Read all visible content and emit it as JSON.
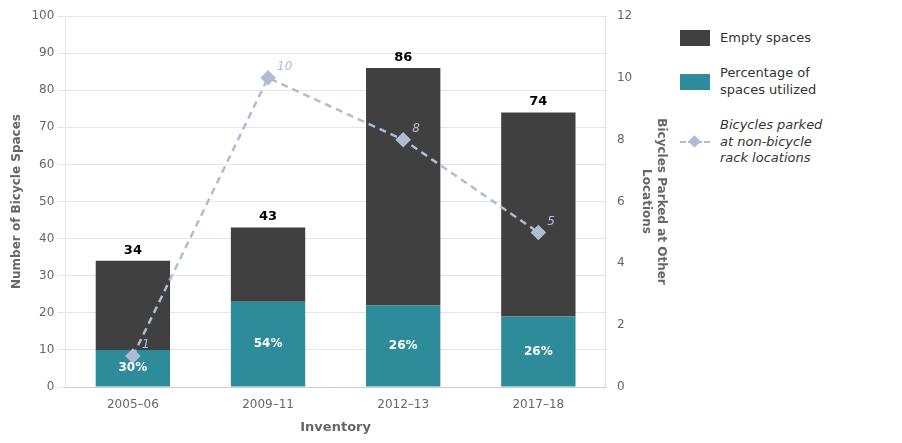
{
  "chart_data": {
    "type": "bar",
    "stacked": true,
    "categories": [
      "2005–06",
      "2009–11",
      "2012–13",
      "2017–18"
    ],
    "xlabel": "Inventory",
    "ylabel": "Number of Bicycle Spaces",
    "y2label": "Bicycles Parked at Other\nLocations",
    "ylim": [
      0,
      100
    ],
    "yticks": [
      0,
      10,
      20,
      30,
      40,
      50,
      60,
      70,
      80,
      90,
      100
    ],
    "y2lim": [
      0,
      12
    ],
    "y2ticks": [
      0,
      2,
      4,
      6,
      8,
      10,
      12
    ],
    "grid": "y",
    "legend": "right",
    "series": [
      {
        "name": "Empty spaces",
        "color": "#404040",
        "values": [
          24,
          20,
          64,
          55
        ]
      },
      {
        "name": "Percentage of\nspaces utilized",
        "color": "#2e8b9a",
        "values": [
          10,
          23,
          22,
          19
        ],
        "percent_labels": [
          "30%",
          "54%",
          "26%",
          "26%"
        ]
      },
      {
        "name": "Bicycles parked\nat non-bicycle\nrack locations",
        "type": "line",
        "axis": "y2",
        "color": "#b0bcd4",
        "marker": "diamond",
        "line_style": "dashed",
        "values": [
          1,
          10,
          8,
          5
        ],
        "data_labels": true
      }
    ],
    "totals": [
      34,
      43,
      86,
      74
    ]
  }
}
